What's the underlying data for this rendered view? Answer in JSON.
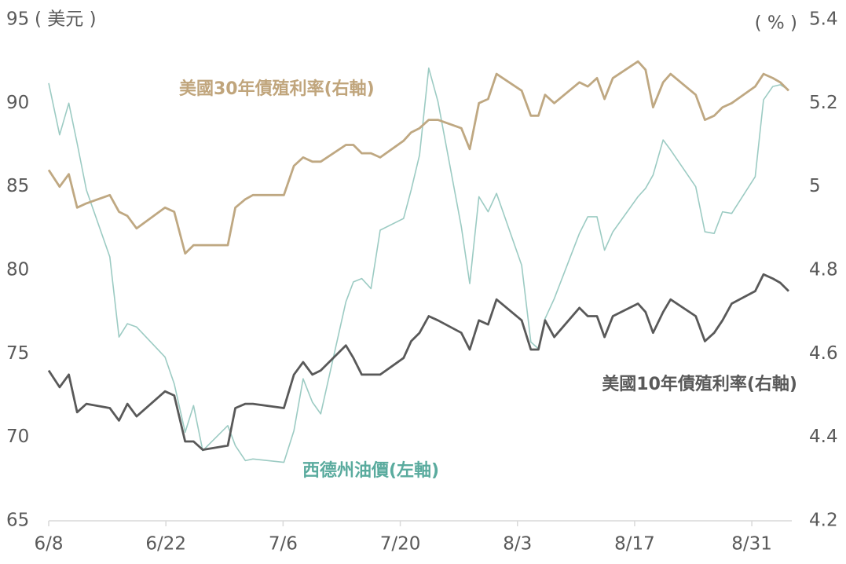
{
  "chart_data": {
    "type": "line",
    "y_unit_label": "( 美元 )",
    "y2_unit_label": "( % )",
    "x": [
      0,
      1.3,
      2.4,
      3.4,
      4.5,
      7.3,
      8.4,
      9.4,
      10.5,
      13.9,
      15.0,
      16.3,
      17.3,
      18.4,
      21.4,
      22.3,
      23.5,
      24.4,
      28.1,
      29.3,
      30.4,
      31.5,
      32.5,
      35.5,
      36.4,
      37.4,
      38.5,
      39.6,
      42.4,
      43.3,
      44.3,
      45.4,
      46.5,
      49.3,
      50.3,
      51.4,
      52.5,
      53.5,
      56.5,
      57.6,
      58.5,
      59.3,
      60.4,
      63.4,
      64.4,
      65.5,
      66.4,
      67.4,
      70.4,
      71.3,
      72.2,
      73.4,
      74.3,
      77.3,
      78.4,
      79.5,
      80.5,
      81.6,
      84.4,
      85.4,
      86.5,
      87.4,
      88.4
    ],
    "xlim": [
      0,
      88.4
    ],
    "xticks": [
      {
        "value": 0,
        "label": "6/8"
      },
      {
        "value": 14,
        "label": "6/22"
      },
      {
        "value": 28,
        "label": "7/6"
      },
      {
        "value": 42,
        "label": "7/20"
      },
      {
        "value": 56,
        "label": "8/3"
      },
      {
        "value": 70,
        "label": "8/17"
      },
      {
        "value": 84,
        "label": "8/31"
      }
    ],
    "ylim": [
      65,
      95
    ],
    "yticks": [
      65,
      70,
      75,
      80,
      85,
      90,
      95
    ],
    "y2lim": [
      4.2,
      5.4
    ],
    "y2ticks": [
      4.2,
      4.4,
      4.6,
      4.8,
      5,
      5.2,
      5.4
    ],
    "series": [
      {
        "name": "西德州油價(左軸)",
        "color": "#9ccbc3",
        "label_color": "#5aab9e",
        "axis": "y",
        "values": [
          91.2,
          88.1,
          90.0,
          87.6,
          84.8,
          80.8,
          76.0,
          76.8,
          76.6,
          74.8,
          73.2,
          70.3,
          71.9,
          69.2,
          70.7,
          69.5,
          68.6,
          68.7,
          68.5,
          70.4,
          73.5,
          72.1,
          71.4,
          78.1,
          79.3,
          79.5,
          78.9,
          82.4,
          83.1,
          84.8,
          86.9,
          92.1,
          90.1,
          82.6,
          79.2,
          84.4,
          83.5,
          84.6,
          80.3,
          75.7,
          75.3,
          77.1,
          78.3,
          82.2,
          83.2,
          83.2,
          81.2,
          82.3,
          84.4,
          84.9,
          85.7,
          87.8,
          87.2,
          85.0,
          82.3,
          82.2,
          83.5,
          83.4,
          85.6,
          90.2,
          91.0,
          91.1,
          90.8
        ]
      },
      {
        "name": "美國30年債殖利率(右軸)",
        "color": "#bfa882",
        "label_color": "#c0a57c",
        "axis": "y2",
        "values": [
          5.04,
          5.0,
          5.03,
          4.95,
          4.96,
          4.98,
          4.94,
          4.93,
          4.9,
          4.95,
          4.94,
          4.84,
          4.86,
          4.86,
          4.86,
          4.95,
          4.97,
          4.98,
          4.98,
          5.05,
          5.07,
          5.06,
          5.06,
          5.1,
          5.1,
          5.08,
          5.08,
          5.07,
          5.11,
          5.13,
          5.14,
          5.16,
          5.16,
          5.14,
          5.09,
          5.2,
          5.21,
          5.27,
          5.23,
          5.17,
          5.17,
          5.22,
          5.2,
          5.25,
          5.24,
          5.26,
          5.21,
          5.26,
          5.3,
          5.28,
          5.19,
          5.25,
          5.27,
          5.22,
          5.16,
          5.17,
          5.19,
          5.2,
          5.24,
          5.27,
          5.26,
          5.25,
          5.23
        ]
      },
      {
        "name": "美國10年債殖利率(右軸)",
        "color": "#595959",
        "label_color": "#595959",
        "axis": "y2",
        "values": [
          4.56,
          4.52,
          4.55,
          4.46,
          4.48,
          4.47,
          4.44,
          4.48,
          4.45,
          4.51,
          4.5,
          4.39,
          4.39,
          4.37,
          4.38,
          4.47,
          4.48,
          4.48,
          4.47,
          4.55,
          4.58,
          4.55,
          4.56,
          4.62,
          4.59,
          4.55,
          4.55,
          4.55,
          4.59,
          4.63,
          4.65,
          4.69,
          4.68,
          4.65,
          4.61,
          4.68,
          4.67,
          4.73,
          4.68,
          4.61,
          4.61,
          4.68,
          4.64,
          4.71,
          4.69,
          4.69,
          4.64,
          4.69,
          4.72,
          4.7,
          4.65,
          4.7,
          4.73,
          4.69,
          4.63,
          4.65,
          4.68,
          4.72,
          4.75,
          4.79,
          4.78,
          4.77,
          4.75
        ]
      }
    ]
  }
}
